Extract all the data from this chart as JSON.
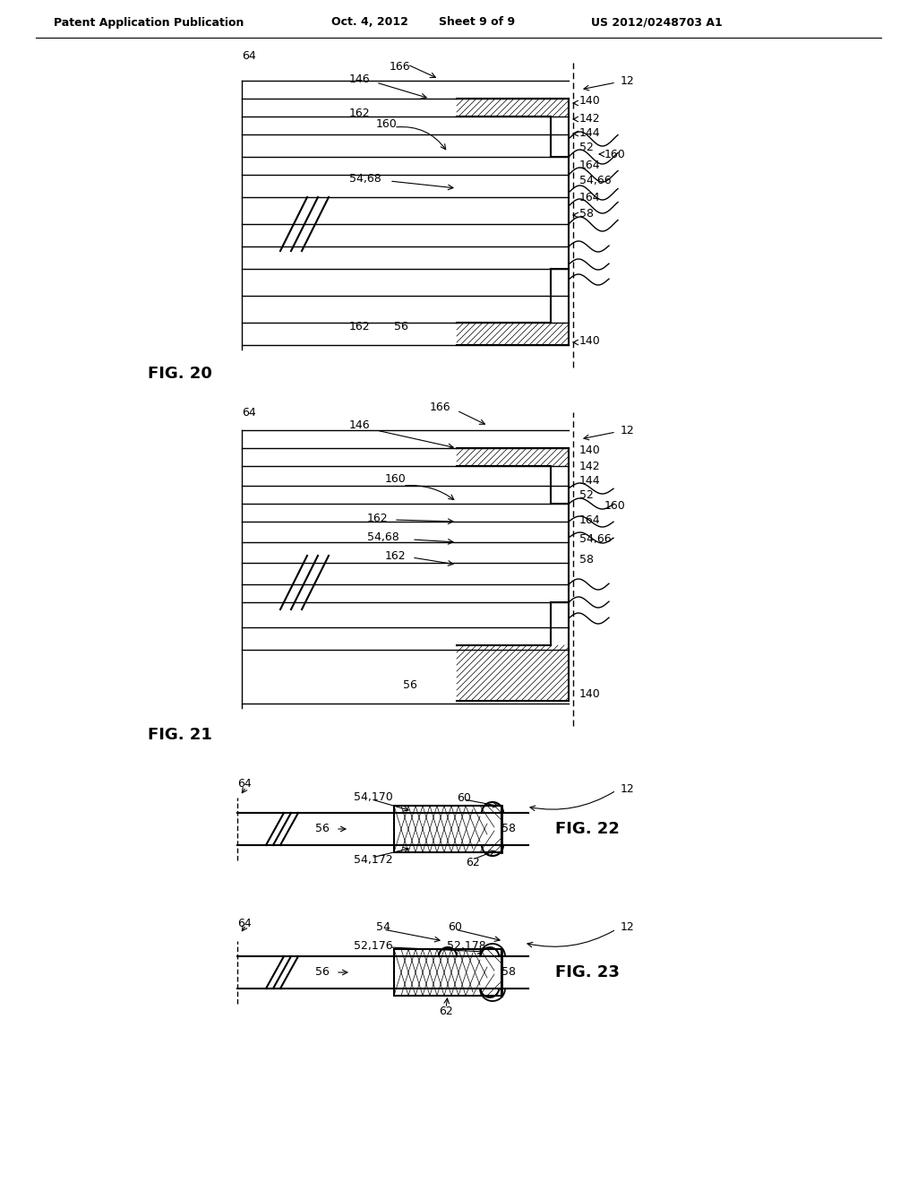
{
  "title": "Patent Application Publication",
  "date": "Oct. 4, 2012",
  "sheet": "Sheet 9 of 9",
  "patent_num": "US 2012/0248703 A1",
  "background_color": "#ffffff",
  "line_color": "#000000",
  "hatch_color": "#000000"
}
